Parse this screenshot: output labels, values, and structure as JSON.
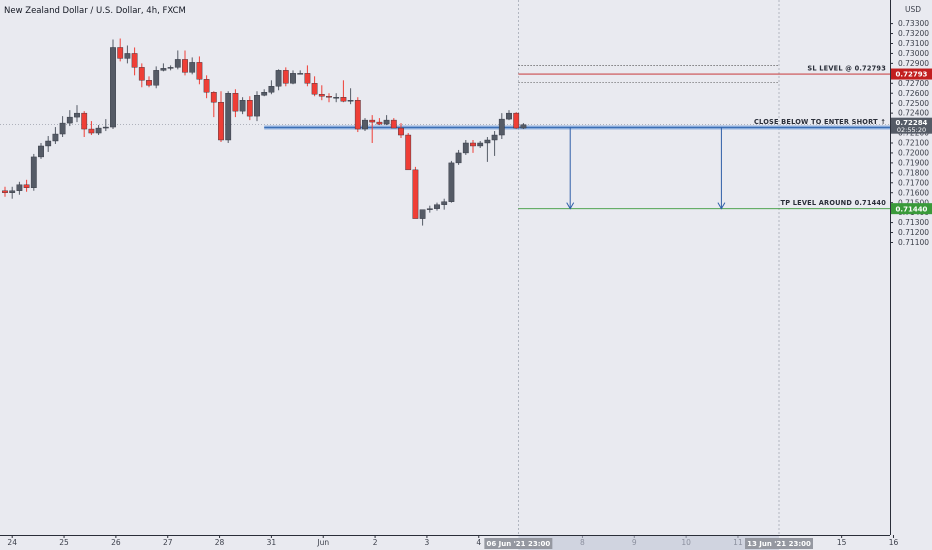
{
  "chart_data": {
    "type": "candlestick",
    "title": "New Zealand Dollar / U.S. Dollar, 4h, FXCM",
    "currency": "USD",
    "ylim": [
      0.7105,
      0.7343
    ],
    "y_ticks": [
      0.711,
      0.712,
      0.713,
      0.714,
      0.715,
      0.716,
      0.717,
      0.718,
      0.719,
      0.72,
      0.721,
      0.722,
      0.723,
      0.724,
      0.725,
      0.726,
      0.727,
      0.728,
      0.729,
      0.73,
      0.731,
      0.732,
      0.733
    ],
    "y_tick_labels": [
      "0.71100",
      "0.71200",
      "0.71300",
      "0.71400",
      "0.71500",
      "0.71600",
      "0.71700",
      "0.71800",
      "0.71900",
      "0.72000",
      "0.72100",
      "0.72200",
      "0.72300",
      "0.72400",
      "0.72500",
      "0.72600",
      "0.72700",
      "0.72800",
      "0.72900",
      "0.73000",
      "0.73100",
      "0.73200",
      "0.73300"
    ],
    "x_ticks": [
      {
        "bar": 1.0,
        "label": "24"
      },
      {
        "bar": 8.2,
        "label": "25"
      },
      {
        "bar": 15.4,
        "label": "26"
      },
      {
        "bar": 22.6,
        "label": "27"
      },
      {
        "bar": 29.8,
        "label": "28"
      },
      {
        "bar": 37.0,
        "label": "31"
      },
      {
        "bar": 44.2,
        "label": "Jun"
      },
      {
        "bar": 51.4,
        "label": "2"
      },
      {
        "bar": 58.6,
        "label": "3"
      },
      {
        "bar": 65.8,
        "label": "4"
      },
      {
        "bar": 80.2,
        "label": "8"
      },
      {
        "bar": 87.4,
        "label": "9"
      },
      {
        "bar": 94.6,
        "label": "10"
      },
      {
        "bar": 101.8,
        "label": "11"
      },
      {
        "bar": 116.2,
        "label": "15"
      },
      {
        "bar": 123.4,
        "label": "16"
      }
    ],
    "x_highlight": [
      {
        "bar": 71.3,
        "label": "06 Jun '21  23:00"
      },
      {
        "bar": 107.5,
        "label": "13 Jun '21  23:00"
      }
    ],
    "bull_color": "#555b66",
    "bear_color": "#ef3e36",
    "candles": [
      [
        0.7162,
        0.7166,
        0.7156,
        0.716
      ],
      [
        0.716,
        0.7166,
        0.7154,
        0.7162
      ],
      [
        0.7162,
        0.7171,
        0.7158,
        0.7168
      ],
      [
        0.7168,
        0.7173,
        0.7161,
        0.7165
      ],
      [
        0.7165,
        0.7199,
        0.7162,
        0.7196
      ],
      [
        0.7196,
        0.721,
        0.7194,
        0.7207
      ],
      [
        0.7207,
        0.7217,
        0.7201,
        0.7212
      ],
      [
        0.7212,
        0.7226,
        0.7209,
        0.7219
      ],
      [
        0.7219,
        0.7237,
        0.7216,
        0.723
      ],
      [
        0.723,
        0.7243,
        0.7227,
        0.7236
      ],
      [
        0.7236,
        0.7248,
        0.7231,
        0.724
      ],
      [
        0.724,
        0.7242,
        0.7216,
        0.7224
      ],
      [
        0.7224,
        0.7232,
        0.7218,
        0.722
      ],
      [
        0.722,
        0.7228,
        0.7218,
        0.7225
      ],
      [
        0.7225,
        0.7234,
        0.7222,
        0.7226
      ],
      [
        0.7226,
        0.7314,
        0.7224,
        0.7306
      ],
      [
        0.7306,
        0.7315,
        0.7292,
        0.7295
      ],
      [
        0.7295,
        0.7308,
        0.729,
        0.73
      ],
      [
        0.73,
        0.7306,
        0.7278,
        0.7286
      ],
      [
        0.7286,
        0.729,
        0.7266,
        0.7273
      ],
      [
        0.7273,
        0.7277,
        0.7266,
        0.7268
      ],
      [
        0.7268,
        0.7287,
        0.7265,
        0.7283
      ],
      [
        0.7283,
        0.729,
        0.7282,
        0.7285
      ],
      [
        0.7285,
        0.7288,
        0.7283,
        0.7286
      ],
      [
        0.7286,
        0.7303,
        0.7284,
        0.7294
      ],
      [
        0.7294,
        0.7303,
        0.7278,
        0.7281
      ],
      [
        0.7281,
        0.7296,
        0.7279,
        0.7291
      ],
      [
        0.7291,
        0.7297,
        0.7269,
        0.7274
      ],
      [
        0.7274,
        0.7278,
        0.7255,
        0.7261
      ],
      [
        0.7261,
        0.7262,
        0.7236,
        0.7251
      ],
      [
        0.7251,
        0.7262,
        0.7211,
        0.7213
      ],
      [
        0.7213,
        0.7262,
        0.721,
        0.726
      ],
      [
        0.726,
        0.7264,
        0.7236,
        0.7242
      ],
      [
        0.7242,
        0.7256,
        0.7239,
        0.7253
      ],
      [
        0.7253,
        0.7257,
        0.7233,
        0.7237
      ],
      [
        0.7237,
        0.7262,
        0.7232,
        0.7258
      ],
      [
        0.7258,
        0.7264,
        0.7257,
        0.7261
      ],
      [
        0.7261,
        0.7273,
        0.7259,
        0.7267
      ],
      [
        0.7267,
        0.7284,
        0.7263,
        0.7283
      ],
      [
        0.7283,
        0.7286,
        0.7267,
        0.727
      ],
      [
        0.727,
        0.7283,
        0.7269,
        0.728
      ],
      [
        0.728,
        0.7283,
        0.7279,
        0.728
      ],
      [
        0.728,
        0.7288,
        0.7267,
        0.727
      ],
      [
        0.727,
        0.7277,
        0.7257,
        0.7259
      ],
      [
        0.7259,
        0.7268,
        0.7253,
        0.7257
      ],
      [
        0.7257,
        0.726,
        0.7251,
        0.7256
      ],
      [
        0.7256,
        0.726,
        0.7251,
        0.7256
      ],
      [
        0.7256,
        0.7273,
        0.7251,
        0.7252
      ],
      [
        0.7252,
        0.7265,
        0.7249,
        0.7253
      ],
      [
        0.7253,
        0.7256,
        0.7221,
        0.7224
      ],
      [
        0.7224,
        0.7235,
        0.7222,
        0.7233
      ],
      [
        0.7233,
        0.7238,
        0.721,
        0.7231
      ],
      [
        0.7231,
        0.7235,
        0.7228,
        0.7229
      ],
      [
        0.7229,
        0.7238,
        0.7228,
        0.7233
      ],
      [
        0.7233,
        0.7235,
        0.7226,
        0.7225
      ],
      [
        0.7225,
        0.723,
        0.7215,
        0.7218
      ],
      [
        0.7218,
        0.722,
        0.7184,
        0.7183
      ],
      [
        0.7183,
        0.7186,
        0.7136,
        0.7134
      ],
      [
        0.7134,
        0.7142,
        0.7127,
        0.7143
      ],
      [
        0.7143,
        0.7147,
        0.714,
        0.7144
      ],
      [
        0.7144,
        0.715,
        0.7142,
        0.7148
      ],
      [
        0.7148,
        0.7154,
        0.7143,
        0.7151
      ],
      [
        0.7151,
        0.7192,
        0.715,
        0.719
      ],
      [
        0.719,
        0.7203,
        0.7188,
        0.72
      ],
      [
        0.72,
        0.7213,
        0.7198,
        0.721
      ],
      [
        0.721,
        0.7213,
        0.72,
        0.7207
      ],
      [
        0.7207,
        0.7212,
        0.7205,
        0.721
      ],
      [
        0.721,
        0.7216,
        0.7191,
        0.7213
      ],
      [
        0.7213,
        0.7222,
        0.7197,
        0.7218
      ],
      [
        0.7218,
        0.724,
        0.7214,
        0.7234
      ],
      [
        0.7234,
        0.7243,
        0.7233,
        0.724
      ],
      [
        0.724,
        0.7241,
        0.7224,
        0.7225
      ],
      [
        0.7225,
        0.723,
        0.7224,
        0.72284
      ]
    ],
    "levels": [
      {
        "price": 0.72793,
        "color": "#c21f1f",
        "label": "SL LEVEL @ 0.72793",
        "tag": "0.72793",
        "from_bar": 71.3
      },
      {
        "price": 0.7144,
        "color": "#3a9a3a",
        "label": "TP LEVEL AROUND 0.71440",
        "tag": "0.71440",
        "from_bar": 71.3
      },
      {
        "price": 0.72256,
        "color": "#3c6fb5",
        "label": "CLOSE BELOW TO ENTER SHORT ↑",
        "tag": "0.72256",
        "from_bar": 36.0
      }
    ],
    "dotted_levels": [
      0.7288,
      0.7271
    ],
    "last_price": {
      "price": 0.72284,
      "tag": "0.72284",
      "countdown": "02:55:20"
    },
    "arrows": [
      {
        "bar": 78.5,
        "from": 0.72256,
        "to": 0.7144
      },
      {
        "bar": 99.5,
        "from": 0.72256,
        "to": 0.7144
      }
    ]
  }
}
